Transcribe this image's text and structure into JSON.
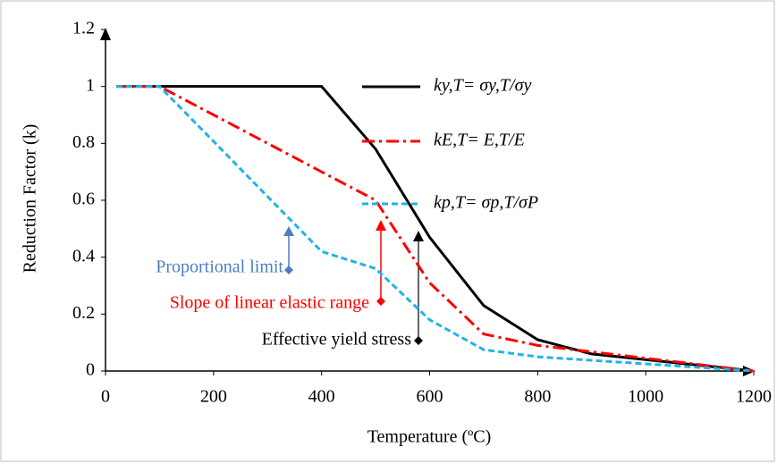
{
  "chart_data": {
    "type": "line",
    "x_label": "Temperature (ºC)",
    "y_label": "Reduction Factor (k)",
    "x": [
      20,
      100,
      200,
      300,
      400,
      500,
      600,
      700,
      800,
      900,
      1000,
      1100,
      1200
    ],
    "series": [
      {
        "name": "ky,T= σy,T/σy",
        "color": "#000000",
        "dash": "solid",
        "values": [
          1,
          1,
          1,
          1,
          1,
          0.78,
          0.47,
          0.23,
          0.11,
          0.06,
          0.04,
          0.02,
          0
        ]
      },
      {
        "name": "kE,T= E,T/E",
        "color": "#ff0000",
        "dash": "dashdot",
        "values": [
          1,
          1,
          0.9,
          0.8,
          0.7,
          0.6,
          0.31,
          0.13,
          0.09,
          0.0675,
          0.045,
          0.0225,
          0
        ]
      },
      {
        "name": "kp,T= σp,T/σP",
        "color": "#1fb4e8",
        "dash": "dashed",
        "values": [
          1,
          1,
          0.807,
          0.613,
          0.42,
          0.36,
          0.18,
          0.075,
          0.05,
          0.0375,
          0.025,
          0.0125,
          0
        ]
      }
    ],
    "annotations": [
      "Proportional limit",
      "Slope of linear elastic range",
      "Effective yield stress"
    ],
    "xlim": [
      0,
      1200
    ],
    "xticks": [
      0,
      200,
      400,
      600,
      800,
      1000,
      1200
    ],
    "ylim": [
      0,
      1.2
    ],
    "yticks": [
      0,
      0.2,
      0.4,
      0.6,
      0.8,
      1,
      1.2
    ],
    "grid": false
  }
}
